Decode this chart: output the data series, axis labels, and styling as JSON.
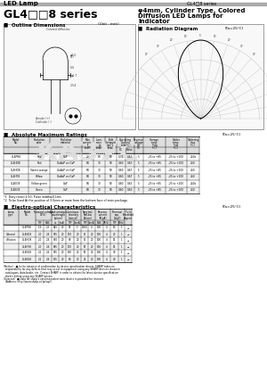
{
  "header_left": "LED Lamp",
  "header_right": "GL4□8 series",
  "title_series": "GL4□□8 series",
  "title_desc_line1": "φ4mm, Cylinder Type, Colored",
  "title_desc_line2": "Diffusion LED Lamps for",
  "title_desc_line3": "Indicator",
  "section1": "■  Outline Dimensions",
  "section1_note": "(Unit : mm)",
  "section2": "■  Radiation Diagram",
  "section2_note": "(Ta=25°C)",
  "section3": "■  Absolute Maximum Ratings",
  "section3_note": "(Ta=25°C)",
  "section4": "■  Electro-optical Characteristics",
  "section4_note": "(Ta=25°C)",
  "footnote1": "*1  Duty ratio=1/10, Pulse width≤0.1ms",
  "footnote2": "*2  To be fixed At the position of 3.0mm or more from the bottom face of resin package.",
  "abs_rows": [
    [
      "GL4PR8",
      "Red",
      "GaP",
      "20",
      "80",
      "50",
      "0.31",
      "0.63",
      "5",
      "-25 to +85",
      "-25 to +100",
      "260s"
    ],
    [
      "GL4HD8",
      "Red",
      "GaAsP on GaP",
      "84",
      "30",
      "50",
      "0.60",
      "0.63",
      "5",
      "-25 to +85",
      "-25 to +100",
      "260"
    ],
    [
      "GL4HO8",
      "Sweet orange",
      "GaAsP on GaP",
      "84",
      "30",
      "50",
      "0.60",
      "0.67",
      "5",
      "-25 to +85",
      "-25 to +100",
      "260"
    ],
    [
      "GL4HY8",
      "Yellow",
      "GaAsP on GaP",
      "84",
      "30",
      "50",
      "0.60",
      "0.67",
      "5",
      "-25 to +85",
      "-25 to +100",
      "260"
    ],
    [
      "GL4EG8",
      "Yellow green",
      "GaP",
      "84",
      "30",
      "50",
      "0.60",
      "0.63",
      "5",
      "-25 to +85",
      "-25 to +100",
      "260s"
    ],
    [
      "GL4KG8",
      "Green",
      "GaP",
      "84",
      "30",
      "50",
      "0.60",
      "0.63",
      "5",
      "-25 to +85",
      "-25 to +100",
      "260"
    ]
  ],
  "eo_rows": [
    [
      "",
      "GL4PR8",
      "1.9",
      "2.5",
      "645",
      "20",
      "15",
      "5",
      "1000",
      "4",
      "100",
      "4",
      "60",
      "1",
      "→"
    ],
    [
      "Colored",
      "GL4HD8",
      "2.0",
      "2.6",
      "655",
      "20",
      "110",
      "20",
      "55",
      "20",
      "100",
      "4",
      "20",
      "1",
      "→"
    ],
    [
      "diffusion",
      "GL4HO8",
      "2.0",
      "2.6",
      "610",
      "20",
      "80",
      "20",
      "55",
      "20",
      "100",
      "4",
      "15",
      "1",
      "→"
    ],
    [
      "",
      "GL4HY8",
      "2.0",
      "2.6",
      "585",
      "20",
      "110",
      "20",
      "50",
      "20",
      "100",
      "4",
      "15",
      "1",
      "→"
    ],
    [
      "",
      "GL4EG8",
      "2.1",
      "2.6",
      "565",
      "20",
      "100",
      "20",
      "50",
      "20",
      "100",
      "4",
      "30",
      "1",
      "→"
    ],
    [
      "",
      "GL4KG8",
      "2.1",
      "2.6",
      "555",
      "20",
      "80",
      "20",
      "25",
      "20",
      "100",
      "4",
      "40",
      "1",
      "→"
    ]
  ],
  "bg_color": "#ffffff"
}
